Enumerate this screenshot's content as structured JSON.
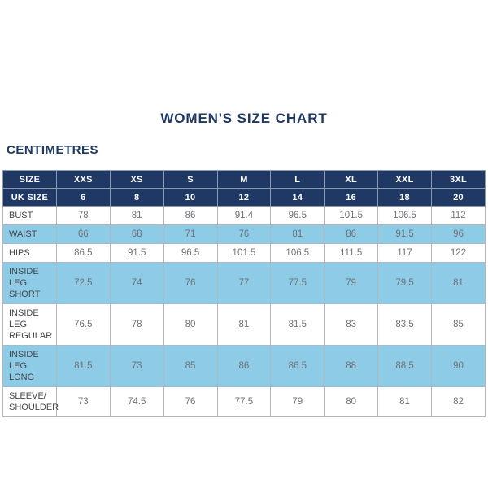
{
  "page": {
    "title": "WOMEN'S SIZE CHART",
    "unit_label": "CENTIMETRES"
  },
  "colors": {
    "navy": "#1f3864",
    "light_blue": "#8ecbe6",
    "border": "#b2b7bd",
    "label_text": "#45484d",
    "value_text": "#6f7277"
  },
  "table": {
    "size_header": {
      "label": "SIZE",
      "sizes": [
        "XXS",
        "XS",
        "S",
        "M",
        "L",
        "XL",
        "XXL",
        "3XL"
      ]
    },
    "uk_size_row": {
      "label": "UK SIZE",
      "values": [
        "6",
        "8",
        "10",
        "12",
        "14",
        "16",
        "18",
        "20"
      ]
    },
    "rows": [
      {
        "label_lines": [
          "BUST"
        ],
        "values": [
          "78",
          "81",
          "86",
          "91.4",
          "96.5",
          "101.5",
          "106.5",
          "112"
        ]
      },
      {
        "label_lines": [
          "WAIST"
        ],
        "values": [
          "66",
          "68",
          "71",
          "76",
          "81",
          "86",
          "91.5",
          "96"
        ]
      },
      {
        "label_lines": [
          "HIPS"
        ],
        "values": [
          "86.5",
          "91.5",
          "96.5",
          "101.5",
          "106.5",
          "111.5",
          "117",
          "122"
        ]
      },
      {
        "label_lines": [
          "INSIDE LEG",
          "SHORT"
        ],
        "values": [
          "72.5",
          "74",
          "76",
          "77",
          "77.5",
          "79",
          "79.5",
          "81"
        ]
      },
      {
        "label_lines": [
          "INSIDE LEG",
          "REGULAR"
        ],
        "values": [
          "76.5",
          "78",
          "80",
          "81",
          "81.5",
          "83",
          "83.5",
          "85"
        ]
      },
      {
        "label_lines": [
          "INSIDE LEG",
          "LONG"
        ],
        "values": [
          "81.5",
          "73",
          "85",
          "86",
          "86.5",
          "88",
          "88.5",
          "90"
        ]
      },
      {
        "label_lines": [
          "SLEEVE/",
          "SHOULDER"
        ],
        "values": [
          "73",
          "74.5",
          "76",
          "77.5",
          "79",
          "80",
          "81",
          "82"
        ]
      }
    ]
  },
  "chart_data": {
    "type": "table",
    "title": "WOMEN'S SIZE CHART",
    "unit": "CENTIMETRES",
    "columns": [
      "SIZE",
      "XXS",
      "XS",
      "S",
      "M",
      "L",
      "XL",
      "XXL",
      "3XL"
    ],
    "rows": [
      [
        "UK SIZE",
        6,
        8,
        10,
        12,
        14,
        16,
        18,
        20
      ],
      [
        "BUST",
        78,
        81,
        86,
        91.4,
        96.5,
        101.5,
        106.5,
        112
      ],
      [
        "WAIST",
        66,
        68,
        71,
        76,
        81,
        86,
        91.5,
        96
      ],
      [
        "HIPS",
        86.5,
        91.5,
        96.5,
        101.5,
        106.5,
        111.5,
        117,
        122
      ],
      [
        "INSIDE LEG SHORT",
        72.5,
        74,
        76,
        77,
        77.5,
        79,
        79.5,
        81
      ],
      [
        "INSIDE LEG REGULAR",
        76.5,
        78,
        80,
        81,
        81.5,
        83,
        83.5,
        85
      ],
      [
        "INSIDE LEG LONG",
        81.5,
        73,
        85,
        86,
        86.5,
        88,
        88.5,
        90
      ],
      [
        "SLEEVE/SHOULDER",
        73,
        74.5,
        76,
        77.5,
        79,
        80,
        81,
        82
      ]
    ]
  }
}
